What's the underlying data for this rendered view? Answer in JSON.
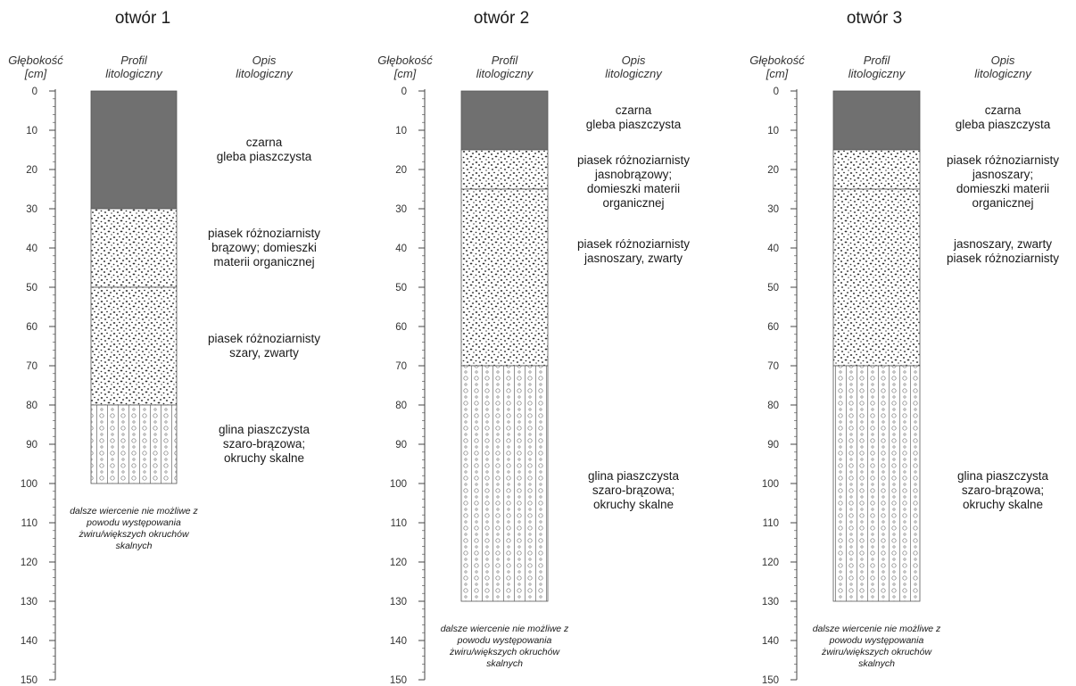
{
  "headers": {
    "depth": [
      "Głębokość",
      "[cm]"
    ],
    "profile": [
      "Profil",
      "litologiczny"
    ],
    "description": [
      "Opis",
      "litologiczny"
    ]
  },
  "axis": {
    "min": 0,
    "max": 150,
    "major_step": 10,
    "minor_step": 2
  },
  "colors": {
    "soil": "#707070",
    "sand": "#ffffff",
    "sand_dots": "#2a2a2a",
    "clay_lines": "#777777",
    "axis": "#444444"
  },
  "boreholes": [
    {
      "title": "otwór 1",
      "total_depth": 100,
      "layers": [
        {
          "type": "soil",
          "top": 0,
          "bottom": 30,
          "lines": [
            "czarna",
            "gleba piaszczysta"
          ]
        },
        {
          "type": "sand",
          "top": 30,
          "bottom": 50,
          "lines": [
            "piasek różnoziarnisty",
            "brązowy; domieszki",
            "materii organicznej"
          ]
        },
        {
          "type": "sand",
          "top": 50,
          "bottom": 80,
          "lines": [
            "piasek różnoziarnisty",
            "szary, zwarty"
          ]
        },
        {
          "type": "clay",
          "top": 80,
          "bottom": 100,
          "lines": [
            "glina piaszczysta",
            "szaro-brązowa;",
            "okruchy skalne"
          ]
        }
      ],
      "note": [
        "dalsze wiercenie nie możliwe z",
        "powodu występowania",
        "żwiru/większych okruchów",
        "skalnych"
      ]
    },
    {
      "title": "otwór 2",
      "total_depth": 130,
      "layers": [
        {
          "type": "soil",
          "top": 0,
          "bottom": 15,
          "lines": [
            "czarna",
            "gleba piaszczysta"
          ]
        },
        {
          "type": "sand",
          "top": 15,
          "bottom": 25,
          "lines": [
            "piasek różnoziarnisty",
            "jasnobrązowy;",
            "domieszki materii",
            "organicznej"
          ]
        },
        {
          "type": "sand",
          "top": 25,
          "bottom": 70,
          "lines": [
            "piasek różnoziarnisty",
            "jasnoszary, zwarty"
          ]
        },
        {
          "type": "clay",
          "top": 70,
          "bottom": 130,
          "lines": [
            "glina piaszczysta",
            "szaro-brązowa;",
            "okruchy skalne"
          ]
        }
      ],
      "note": [
        "dalsze wiercenie nie możliwe z",
        "powodu występowania",
        "żwiru/większych okruchów",
        "skalnych"
      ]
    },
    {
      "title": "otwór 3",
      "total_depth": 130,
      "layers": [
        {
          "type": "soil",
          "top": 0,
          "bottom": 15,
          "lines": [
            "czarna",
            "gleba piaszczysta"
          ]
        },
        {
          "type": "sand",
          "top": 15,
          "bottom": 25,
          "lines": [
            "piasek różnoziarnisty",
            "jasnoszary;",
            "domieszki materii",
            "organicznej"
          ]
        },
        {
          "type": "sand",
          "top": 25,
          "bottom": 70,
          "lines": [
            "jasnoszary, zwarty",
            "piasek różnoziarnisty"
          ]
        },
        {
          "type": "clay",
          "top": 70,
          "bottom": 130,
          "lines": [
            "glina piaszczysta",
            "szaro-brązowa;",
            "okruchy skalne"
          ]
        }
      ],
      "note": [
        "dalsze wiercenie nie możliwe z",
        "powodu występowania",
        "żwiru/większych okruchów",
        "skalnych"
      ]
    }
  ]
}
